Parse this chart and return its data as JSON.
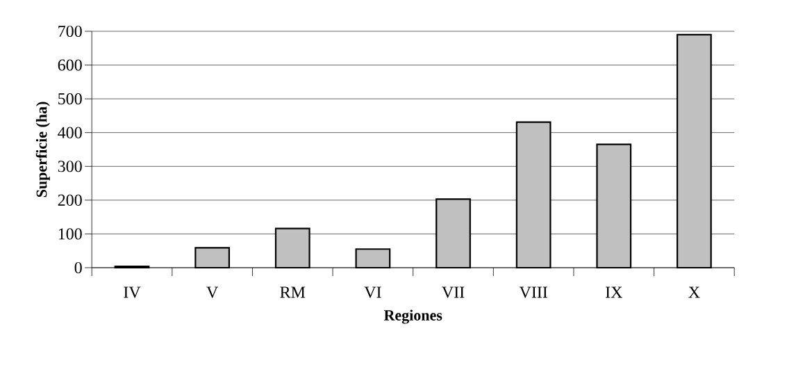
{
  "chart_data": {
    "type": "bar",
    "xlabel": "Regiones",
    "ylabel": "Superficie (ha)",
    "categories": [
      "IV",
      "V",
      "RM",
      "VI",
      "VII",
      "VIII",
      "IX",
      "X"
    ],
    "values": [
      4,
      59,
      116,
      55,
      203,
      431,
      365,
      690
    ],
    "color": "#c0c0c0",
    "ylim": [
      0,
      700
    ],
    "yticks": [
      0,
      100,
      200,
      300,
      400,
      500,
      600,
      700
    ],
    "grid": "y"
  }
}
